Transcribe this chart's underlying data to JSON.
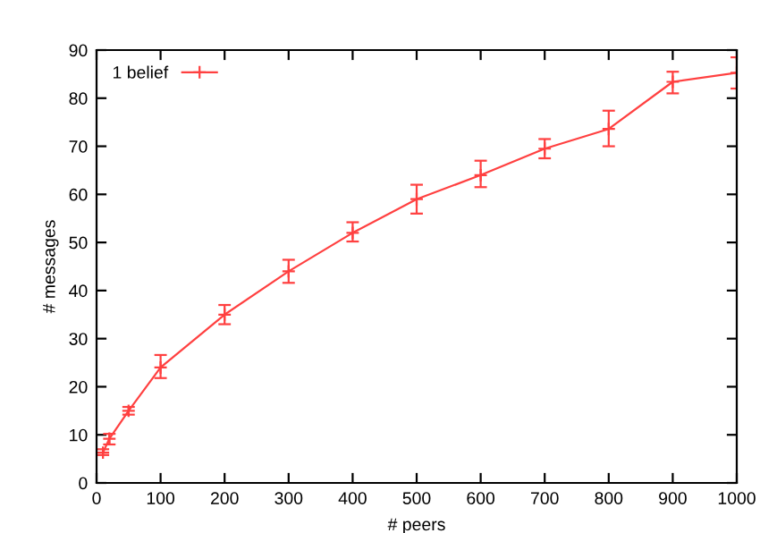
{
  "chart_data": {
    "type": "line",
    "xlabel": "# peers",
    "ylabel": "# messages",
    "x": [
      10,
      20,
      50,
      100,
      200,
      300,
      400,
      500,
      600,
      700,
      800,
      900,
      1000
    ],
    "series": [
      {
        "name": "1 belief",
        "color": "#ff4040",
        "values": [
          6.3,
          9.2,
          15,
          24,
          35,
          44,
          52,
          59,
          64,
          69.5,
          73.6,
          83.4,
          85.3
        ],
        "errors": [
          [
            5.8,
            7
          ],
          [
            8,
            10.2
          ],
          [
            14.2,
            15.8
          ],
          [
            21.8,
            26.6
          ],
          [
            33,
            37
          ],
          [
            41.6,
            46.4
          ],
          [
            50.2,
            54.2
          ],
          [
            56,
            62
          ],
          [
            61.5,
            67
          ],
          [
            67.5,
            71.5
          ],
          [
            70,
            77.4
          ],
          [
            81,
            85.5
          ],
          [
            82,
            88.5
          ]
        ]
      }
    ],
    "xlim": [
      0,
      1000
    ],
    "xticks": [
      0,
      100,
      200,
      300,
      400,
      500,
      600,
      700,
      800,
      900,
      1000
    ],
    "ylim": [
      0,
      90
    ],
    "yticks": [
      0,
      10,
      20,
      30,
      40,
      50,
      60,
      70,
      80,
      90
    ],
    "marker": "cross",
    "legend": "top left",
    "grid": false
  }
}
